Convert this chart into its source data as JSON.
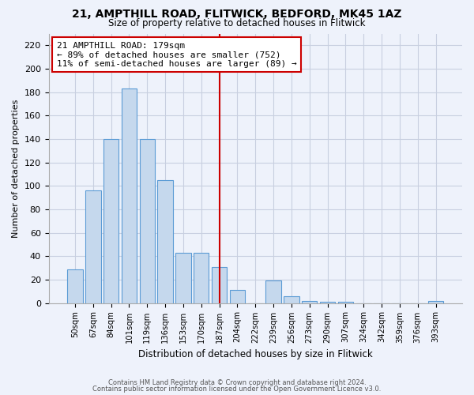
{
  "title1": "21, AMPTHILL ROAD, FLITWICK, BEDFORD, MK45 1AZ",
  "title2": "Size of property relative to detached houses in Flitwick",
  "xlabel": "Distribution of detached houses by size in Flitwick",
  "ylabel": "Number of detached properties",
  "bar_labels": [
    "50sqm",
    "67sqm",
    "84sqm",
    "101sqm",
    "119sqm",
    "136sqm",
    "153sqm",
    "170sqm",
    "187sqm",
    "204sqm",
    "222sqm",
    "239sqm",
    "256sqm",
    "273sqm",
    "290sqm",
    "307sqm",
    "324sqm",
    "342sqm",
    "359sqm",
    "376sqm",
    "393sqm"
  ],
  "bar_values": [
    29,
    96,
    140,
    183,
    140,
    105,
    43,
    43,
    31,
    11,
    0,
    19,
    6,
    2,
    1,
    1,
    0,
    0,
    0,
    0,
    2
  ],
  "bar_color": "#c5d8ed",
  "bar_edge_color": "#5b9bd5",
  "vline_x_index": 8,
  "vline_color": "#cc0000",
  "annotation_title": "21 AMPTHILL ROAD: 179sqm",
  "annotation_line1": "← 89% of detached houses are smaller (752)",
  "annotation_line2": "11% of semi-detached houses are larger (89) →",
  "annotation_box_facecolor": "#ffffff",
  "annotation_box_edgecolor": "#cc0000",
  "ylim": [
    0,
    230
  ],
  "yticks": [
    0,
    20,
    40,
    60,
    80,
    100,
    120,
    140,
    160,
    180,
    200,
    220
  ],
  "footer1": "Contains HM Land Registry data © Crown copyright and database right 2024.",
  "footer2": "Contains public sector information licensed under the Open Government Licence v3.0.",
  "background_color": "#eef2fb",
  "grid_color": "#c8cfe0"
}
